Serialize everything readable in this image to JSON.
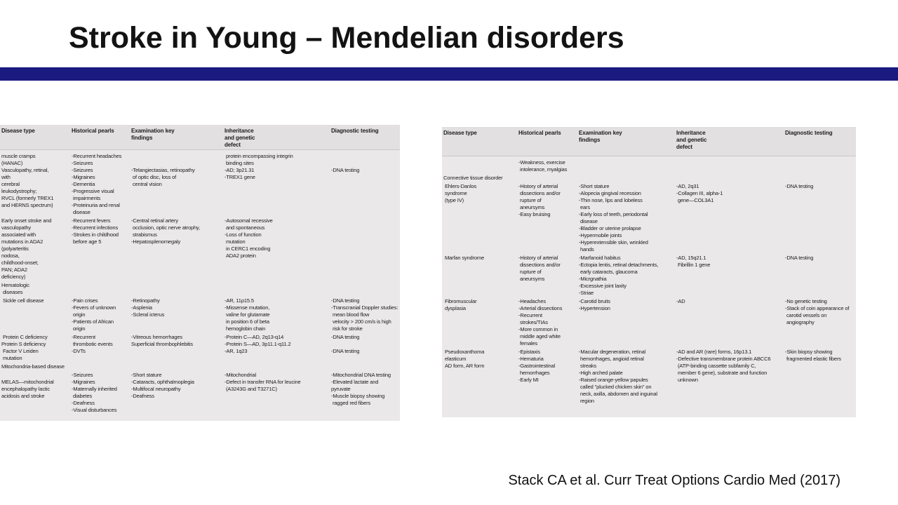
{
  "slide": {
    "title": "Stroke in Young – Mendelian disorders",
    "citation": "Stack CA et al. Curr Treat Options Cardio Med (2017)",
    "accent_bar_color": "#1a1a80",
    "table_background_color": "#eae8e8"
  },
  "left_table": {
    "columns": [
      "Disease type",
      "Historical pearls",
      "Examination key\nfindings",
      "Inheritance\nand genetic\ndefect",
      "Diagnostic testing"
    ],
    "rows": [
      [
        "muscle cramps\n(HANAC)\nVasculopathy, retinal,\nwith\ncerebral\nleukodystrophy;\nRVCL (formerly TREX1\nand HERNS spectrum)",
        "-Recurrent headaches\n-Seizures\n-Seizures\n-Migraines\n-Dementia\n-Progressive visual\n impairments\n-Proteinuria and renal\n disease",
        "\n\n-Telangiectasias, retinopathy\n of optic disc, loss of\n central vision",
        " protein encompassing integrin\n binding sites\n-AD; 3p21.31\n-TREX1 gene",
        "\n\n-DNA testing"
      ],
      [
        "Early onset stroke and\nvasculopathy\nassociated with\nmutations in ADA2\n(polyarteritis\nnodosa,\nchildhood-onset;\nPAN; ADA2\ndeficiency)",
        "-Recurrent fevers\n-Recurrent infections\n-Strokes in childhood\n before age 5",
        "-Central retinal artery\n occlusion, optic nerve atrophy,\n strabismus\n-Hepatosplenomegaly",
        "-Autosomal recessive\n and spontaneous\n-Loss of function\n mutation\n in CERC1 encoding\n ADA2 protein",
        ""
      ],
      [
        "Hematologic\n diseases",
        "",
        "",
        "",
        ""
      ],
      [
        " Sickle cell disease",
        "-Pain crises\n-Fevers of unknown\n origin\n-Patients of African\n origin",
        "-Retinopathy\n-Asplenia\n-Scleral icterus",
        "-AR, 11p15.5\n-Missense mutation,\n valine for glutamate\n in position 6 of beta\n hemoglobin chain",
        "-DNA testing\n-Transcranial Doppler studies:\n mean blood flow\n velocity > 200 cm/s is high\n risk for stroke"
      ],
      [
        " Protein C deficiency\nProtein S deficiency\n Factor V Leiden\n mutation",
        "-Recurrent\n thrombotic events\n-DVTs",
        "-Vitreous hemorrhages\nSuperficial thrombophlebitis",
        "-Protein C—AD, 2q13-q14\n-Protein S—AD, 3p11.1-q11.2\n-AR, 1q23",
        "-DNA testing\n\n-DNA testing"
      ],
      [
        "Mitochondria-based disease",
        "",
        "",
        "",
        ""
      ],
      [
        "\nMELAS—mitochondrial\nencephalopathy lactic\nacidosis and stroke",
        "-Seizures\n-Migraines\n-Maternally inherited\n diabetes\n-Deafness\n-Visual disturbances",
        "-Short stature\n-Cataracts, ophthalmoplegia\n-Multifocal neuropathy\n-Deafness",
        "-Mitochondrial\n-Defect in transfer RNA for leucine\n (A3243G and T3271C)",
        "-Mitochondrial DNA testing\n-Elevated lactate and pyruvate\n-Muscle biopsy showing\n ragged red fibers"
      ]
    ]
  },
  "right_table": {
    "columns": [
      "Disease type",
      "Historical pearls",
      "Examination key\nfindings",
      "Inheritance\nand genetic\ndefect",
      "Diagnostic testing"
    ],
    "rows": [
      [
        "",
        "-Weakness, exercise\n intolerance, myalgias",
        "",
        "",
        ""
      ],
      [
        "Connective tissue disorder",
        "",
        "",
        "",
        ""
      ],
      [
        " Ehlers-Danlos\n syndrome\n (type IV)",
        "-History of arterial\n dissections and/or\n rupture of\n aneursyms\n-Easy bruising",
        "-Short stature\n-Alopecia gingival recession\n-Thin nose, lips and lobeless\n ears\n-Early loss of teeth, periodontal\n disease\n-Bladder or uterine prolapse\n-Hypermobile joints\n-Hyperextensible skin, wrinkled\n hands",
        "-AD, 2q31\n-Collagen III, alpha-1\n gene—COL3A1",
        "-DNA testing"
      ],
      [
        " Marfan syndrome",
        "-History of arterial\n dissections and/or\n rupture of\n aneursyms",
        "-Marfanoid habitus\n-Ectopia lentis, retinal detachments,\n early cataracts, glaucoma\n-Micrgnathia\n-Excessive joint laxity\n-Striae",
        "-AD, 15q21.1\n Fibrillin 1 gene",
        "-DNA testing"
      ],
      [
        " Fibromuscular\n dysplasia",
        "-Headaches\n-Arterial dissections\n-Recurrent\n strokes/TIAs\n-More common in\n middle aged white\n females",
        "-Carotid bruits\n-Hypertension",
        "-AD",
        "-No genetic testing\n-Stack of coin appearance of\n carotid vessels on\n angiography"
      ],
      [
        " Pseudoxanthoma\n elasticum\n AD form, AR form",
        "-Epistaxis\n-Hematuria\n-Gastrointestinal\n hemorrhages\n-Early MI",
        "-Macular degeneration, retinal\n hemorrhages, angioid retinal\n streaks\n-High arched palate\n-Raised orange-yellow papules\n called \"plucked chicken skin\" on\n neck, axilla, abdomen and inguinal\n region",
        "-AD and AR (rare) forms, 16p13.1\n-Defective transmembrane protein ABCC6\n (ATP-binding cassette subfamily C,\n member 6 gene), substrate and function\n unknown",
        "-Skin biopsy showing\n fragmented elastic fibers"
      ]
    ]
  }
}
